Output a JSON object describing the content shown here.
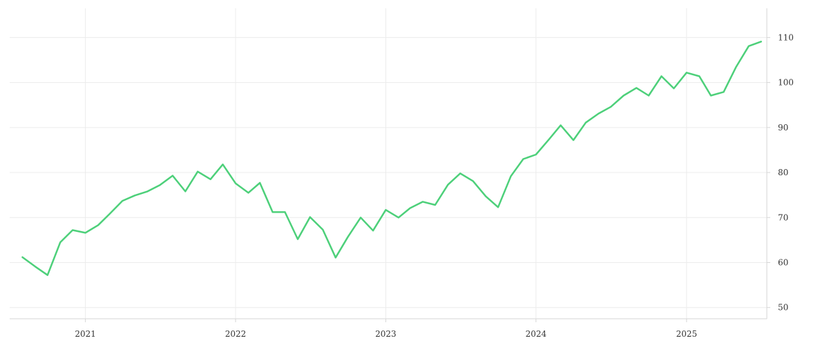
{
  "chart_data": {
    "type": "line",
    "title": "",
    "xlabel": "",
    "ylabel": "",
    "x_axis": {
      "ticks": [
        {
          "date": "2021-01-01",
          "label": "2021"
        },
        {
          "date": "2022-01-01",
          "label": "2022"
        },
        {
          "date": "2023-01-01",
          "label": "2023"
        },
        {
          "date": "2024-01-01",
          "label": "2024"
        },
        {
          "date": "2025-01-01",
          "label": "2025"
        }
      ],
      "range": [
        "2020-07-01",
        "2025-07-15"
      ]
    },
    "y_axis": {
      "position": "right",
      "ticks": [
        50,
        60,
        70,
        80,
        90,
        100,
        110
      ],
      "ylim": [
        47.5,
        116.5
      ]
    },
    "grid": true,
    "legend": "none",
    "colors": {
      "line": "#4dd07a",
      "grid": "#ececec",
      "axis": "#d6d6d6",
      "text": "#333333"
    },
    "series": [
      {
        "x": [
          "2020-08",
          "2020-09",
          "2020-10",
          "2020-11",
          "2020-12",
          "2021-01",
          "2021-02",
          "2021-03",
          "2021-04",
          "2021-05",
          "2021-06",
          "2021-07",
          "2021-08",
          "2021-09",
          "2021-10",
          "2021-11",
          "2021-12",
          "2022-01",
          "2022-02",
          "2022-03",
          "2022-04",
          "2022-05",
          "2022-06",
          "2022-07",
          "2022-08",
          "2022-09",
          "2022-10",
          "2022-11",
          "2022-12",
          "2023-01",
          "2023-02",
          "2023-03",
          "2023-04",
          "2023-05",
          "2023-06",
          "2023-07",
          "2023-08",
          "2023-09",
          "2023-10",
          "2023-11",
          "2023-12",
          "2024-01",
          "2024-02",
          "2024-03",
          "2024-04",
          "2024-05",
          "2024-06",
          "2024-07",
          "2024-08",
          "2024-09",
          "2024-10",
          "2024-11",
          "2024-12",
          "2025-01",
          "2025-02",
          "2025-03",
          "2025-04",
          "2025-05",
          "2025-06",
          "2025-07"
        ],
        "values": [
          61.2,
          59.1,
          57.2,
          64.5,
          67.2,
          66.6,
          68.3,
          70.8,
          73.7,
          74.9,
          75.8,
          77.2,
          79.3,
          75.8,
          80.2,
          78.5,
          81.8,
          77.6,
          75.5,
          77.7,
          71.2,
          71.2,
          65.2,
          70.1,
          67.3,
          61.1,
          65.7,
          70.0,
          67.1,
          71.7,
          70.0,
          72.1,
          73.5,
          72.8,
          77.3,
          79.8,
          78.1,
          74.7,
          72.3,
          79.2,
          83.0,
          84.0,
          87.3,
          90.5,
          87.2,
          91.1,
          93.1,
          94.6,
          97.1,
          98.8,
          97.1,
          101.4,
          98.7,
          102.2,
          101.4,
          97.1,
          97.9,
          103.4,
          108.1,
          109.1
        ]
      }
    ]
  }
}
